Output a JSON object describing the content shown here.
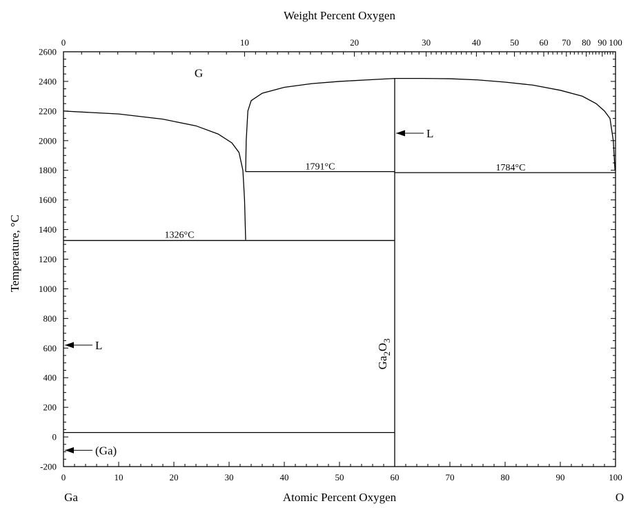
{
  "chart_data": {
    "type": "line",
    "title": "",
    "xlabel": "Atomic Percent Oxygen",
    "x2label": "Weight Percent Oxygen",
    "ylabel": "Temperature, °C",
    "xlim": [
      0,
      100
    ],
    "ylim": [
      -200,
      2600
    ],
    "x_ticks": [
      "0",
      "10",
      "20",
      "30",
      "40",
      "50",
      "60",
      "70",
      "80",
      "90",
      "100"
    ],
    "x_tick_values": [
      0,
      10,
      20,
      30,
      40,
      50,
      60,
      70,
      80,
      90,
      100
    ],
    "y_ticks": [
      "-200",
      "0",
      "200",
      "400",
      "600",
      "800",
      "1000",
      "1200",
      "1400",
      "1600",
      "1800",
      "2000",
      "2200",
      "2400",
      "2600"
    ],
    "y_tick_values": [
      -200,
      0,
      200,
      400,
      600,
      800,
      1000,
      1200,
      1400,
      1600,
      1800,
      2000,
      2200,
      2400,
      2600
    ],
    "x2_ticks": [
      {
        "label": "0",
        "at": 0
      },
      {
        "label": "10",
        "at": 32.8
      },
      {
        "label": "20",
        "at": 52.7
      },
      {
        "label": "30",
        "at": 65.7
      },
      {
        "label": "40",
        "at": 74.8
      },
      {
        "label": "50",
        "at": 81.7
      },
      {
        "label": "60",
        "at": 87.0
      },
      {
        "label": "70",
        "at": 91.1
      },
      {
        "label": "80",
        "at": 94.7
      },
      {
        "label": "90",
        "at": 97.6
      },
      {
        "label": "100",
        "at": 100
      }
    ],
    "corner_labels": {
      "left": "Ga",
      "right": "O"
    },
    "series": [
      {
        "values": [
          [
            0,
            2200
          ],
          [
            10,
            2180
          ],
          [
            18,
            2145
          ],
          [
            24,
            2100
          ],
          [
            28,
            2045
          ],
          [
            30.5,
            1985
          ],
          [
            31.8,
            1920
          ],
          [
            32.5,
            1800
          ],
          [
            32.8,
            1600
          ],
          [
            33,
            1330
          ]
        ]
      },
      {
        "values": [
          [
            33,
            1791
          ],
          [
            33.1,
            2000
          ],
          [
            33.4,
            2200
          ],
          [
            34,
            2270
          ],
          [
            36,
            2320
          ],
          [
            40,
            2360
          ],
          [
            45,
            2385
          ],
          [
            50,
            2400
          ],
          [
            55,
            2410
          ],
          [
            60,
            2420
          ],
          [
            65,
            2420
          ],
          [
            70,
            2418
          ],
          [
            75,
            2410
          ],
          [
            80,
            2395
          ],
          [
            85,
            2375
          ],
          [
            90,
            2340
          ],
          [
            94,
            2300
          ],
          [
            96.5,
            2250
          ],
          [
            98,
            2200
          ],
          [
            99,
            2150
          ],
          [
            99.6,
            2000
          ],
          [
            99.9,
            1800
          ]
        ]
      },
      {
        "values": [
          [
            0,
            1326
          ],
          [
            60,
            1326
          ]
        ]
      },
      {
        "values": [
          [
            33,
            1791
          ],
          [
            60,
            1791
          ]
        ]
      },
      {
        "values": [
          [
            60,
            1784
          ],
          [
            100,
            1784
          ]
        ]
      },
      {
        "values": [
          [
            0,
            30
          ],
          [
            60,
            30
          ]
        ]
      },
      {
        "values": [
          [
            60,
            -200
          ],
          [
            60,
            2420
          ]
        ]
      }
    ],
    "annotations": [
      {
        "text": "G",
        "x": 24.5,
        "y": 2430,
        "kind": "region"
      },
      {
        "text": "1326°C",
        "x": 21,
        "y": 1345,
        "kind": "temp"
      },
      {
        "text": "1791°C",
        "x": 46.5,
        "y": 1805,
        "kind": "temp"
      },
      {
        "text": "1784°C",
        "x": 81,
        "y": 1798,
        "kind": "temp"
      }
    ],
    "arrow_labels": [
      {
        "text": "L",
        "tip_x": 60,
        "y": 2050
      },
      {
        "text": "L",
        "tip_x": 0,
        "y": 620
      },
      {
        "text": "(Ga)",
        "tip_x": 0,
        "y": -90
      }
    ],
    "phase_label": {
      "main": "Ga",
      "sub1": "2",
      "mid": "O",
      "sub2": "3",
      "x": 60,
      "y": 560
    }
  }
}
